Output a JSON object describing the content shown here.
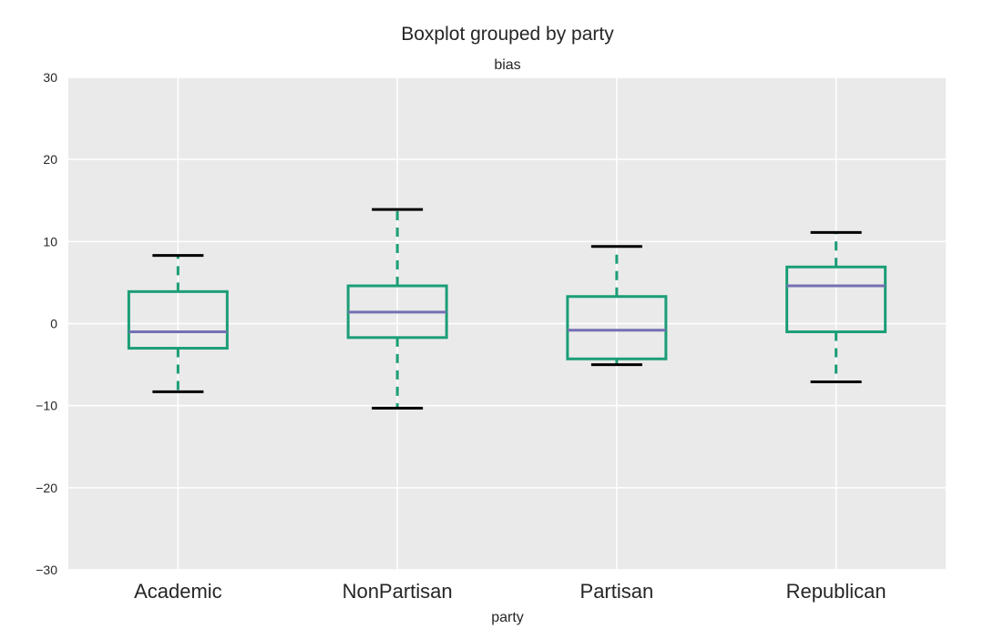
{
  "chart_data": {
    "type": "box",
    "title": "Boxplot grouped by party",
    "subtitle": "bias",
    "xlabel": "party",
    "ylabel": "",
    "ylim": [
      -30,
      30
    ],
    "yticks": [
      30,
      20,
      10,
      0,
      -10,
      -20,
      -30
    ],
    "ytick_labels": [
      "30",
      "20",
      "10",
      "0",
      "−10",
      "−20",
      "−30"
    ],
    "grid": true,
    "categories": [
      "Academic",
      "NonPartisan",
      "Partisan",
      "Republican"
    ],
    "boxes": [
      {
        "category": "Academic",
        "whisker_low": -8.3,
        "q1": -3.0,
        "median": -1.0,
        "q3": 3.9,
        "whisker_high": 8.3
      },
      {
        "category": "NonPartisan",
        "whisker_low": -10.3,
        "q1": -1.7,
        "median": 1.4,
        "q3": 4.6,
        "whisker_high": 13.9
      },
      {
        "category": "Partisan",
        "whisker_low": -5.0,
        "q1": -4.3,
        "median": -0.8,
        "q3": 3.3,
        "whisker_high": 9.4
      },
      {
        "category": "Republican",
        "whisker_low": -7.1,
        "q1": -1.0,
        "median": 4.6,
        "q3": 6.9,
        "whisker_high": 11.1
      }
    ],
    "colors": {
      "background": "#eaeaea",
      "grid": "#ffffff",
      "box": "#1b9e77",
      "median": "#7570b3",
      "cap": "#000000"
    }
  }
}
